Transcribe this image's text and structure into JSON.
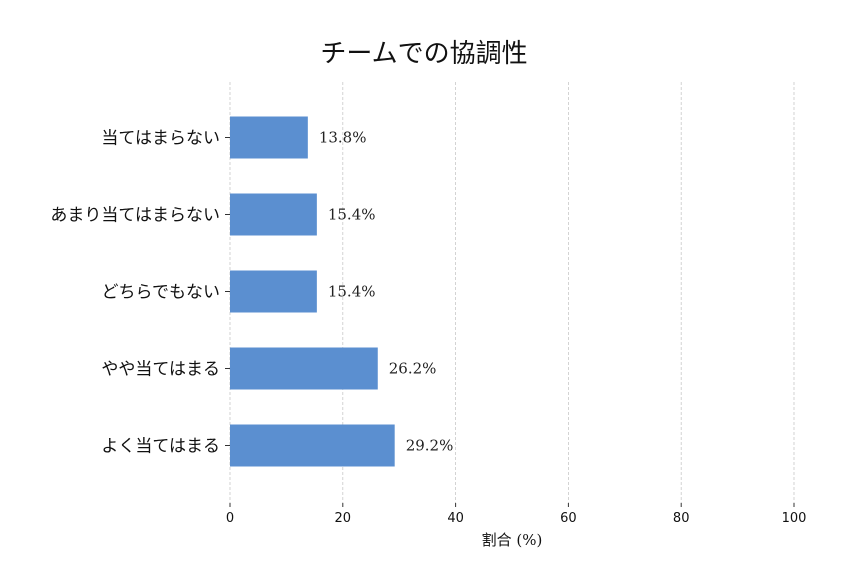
{
  "chart_data": {
    "type": "bar",
    "orientation": "horizontal",
    "title": "チームでの協調性",
    "xlabel": "割合 (%)",
    "ylabel": "",
    "xlim": [
      0,
      100
    ],
    "xticks": [
      0,
      20,
      40,
      60,
      80,
      100
    ],
    "grid": "x, dashed",
    "legend": "none",
    "bar_color": "#5b8fd0",
    "categories": [
      "当てはまらない",
      "あまり当てはまらない",
      "どちらでもない",
      "やや当てはまる",
      "よく当てはまる"
    ],
    "values": [
      13.8,
      15.4,
      15.4,
      26.2,
      29.2
    ],
    "value_labels": [
      "13.8%",
      "15.4%",
      "15.4%",
      "26.2%",
      "29.2%"
    ]
  }
}
